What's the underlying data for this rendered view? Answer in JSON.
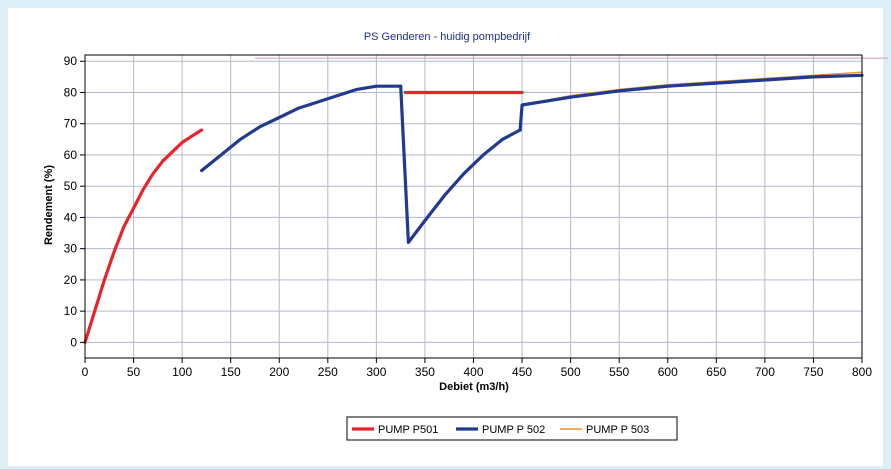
{
  "colors": {
    "page_background": "#ddeef7",
    "grid": "#b7b7cf",
    "reference_line": "#d49bc8",
    "p501": "#e8242b",
    "p502": "#1f3a8f",
    "p503": "#e8912b"
  },
  "chart_data": {
    "type": "line",
    "title": "PS Genderen - huidig pompbedrijf",
    "xlabel": "Debiet (m3/h)",
    "ylabel": "Rendement (%)",
    "xlim": [
      0,
      800
    ],
    "ylim": [
      -5,
      92
    ],
    "xticks": [
      0,
      50,
      100,
      150,
      200,
      250,
      300,
      350,
      400,
      450,
      500,
      550,
      600,
      650,
      700,
      750,
      800
    ],
    "yticks": [
      0,
      10,
      20,
      30,
      40,
      50,
      60,
      70,
      80,
      90
    ],
    "grid": true,
    "legend_position": "bottom-center",
    "reference_line_y": 91,
    "series": [
      {
        "name": "PUMP P501",
        "color": "#e8242b",
        "segments": [
          [
            [
              0,
              0
            ],
            [
              10,
              10
            ],
            [
              20,
              20
            ],
            [
              30,
              29
            ],
            [
              40,
              37
            ],
            [
              50,
              43
            ],
            [
              60,
              49
            ],
            [
              70,
              54
            ],
            [
              80,
              58
            ],
            [
              90,
              61
            ],
            [
              100,
              64
            ],
            [
              110,
              66
            ],
            [
              120,
              68
            ]
          ],
          [
            [
              330,
              80
            ],
            [
              450,
              80
            ]
          ]
        ]
      },
      {
        "name": "PUMP P 502",
        "color": "#1f3a8f",
        "segments": [
          [
            [
              120,
              55
            ],
            [
              140,
              60
            ],
            [
              160,
              65
            ],
            [
              180,
              69
            ],
            [
              200,
              72
            ],
            [
              220,
              75
            ],
            [
              240,
              77
            ],
            [
              260,
              79
            ],
            [
              280,
              81
            ],
            [
              300,
              82
            ],
            [
              320,
              82
            ],
            [
              325,
              82
            ]
          ],
          [
            [
              325,
              82
            ],
            [
              333,
              32
            ],
            [
              350,
              39
            ],
            [
              370,
              47
            ],
            [
              390,
              54
            ],
            [
              410,
              60
            ],
            [
              430,
              65
            ],
            [
              448,
              68
            ]
          ],
          [
            [
              448,
              68
            ],
            [
              450,
              76
            ],
            [
              500,
              78.5
            ],
            [
              550,
              80.5
            ],
            [
              600,
              82
            ],
            [
              650,
              83
            ],
            [
              700,
              84
            ],
            [
              750,
              85
            ],
            [
              800,
              85.5
            ]
          ]
        ]
      },
      {
        "name": "PUMP P 503",
        "color": "#e8912b",
        "segments": [
          [
            [
              450,
              76
            ],
            [
              500,
              79
            ],
            [
              550,
              81
            ],
            [
              600,
              82.5
            ],
            [
              650,
              83.5
            ],
            [
              700,
              84.5
            ],
            [
              750,
              85.5
            ],
            [
              800,
              86.5
            ]
          ]
        ]
      }
    ]
  }
}
